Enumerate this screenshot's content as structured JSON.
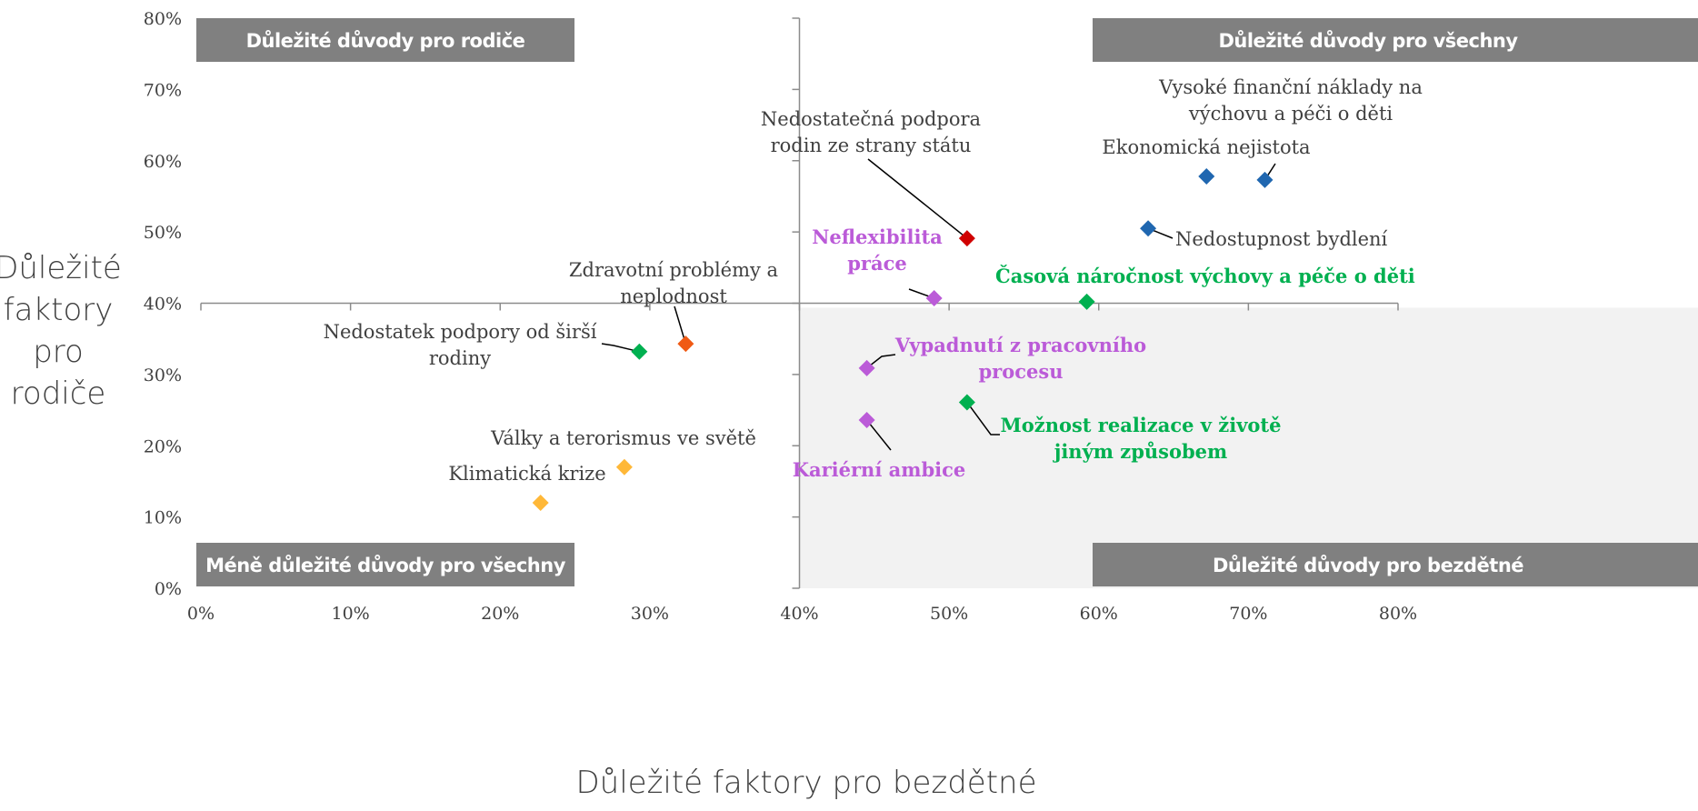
{
  "chart_data": {
    "type": "scatter",
    "xlabel": "Důležité faktory pro bezdětné",
    "ylabel": [
      "Důležité",
      "faktory",
      "pro",
      "rodiče"
    ],
    "xlim": [
      0,
      80
    ],
    "ylim": [
      0,
      80
    ],
    "xticks": [
      {
        "value": 0,
        "label": "0%"
      },
      {
        "value": 10,
        "label": "10%"
      },
      {
        "value": 20,
        "label": "20%"
      },
      {
        "value": 30,
        "label": "30%"
      },
      {
        "value": 40,
        "label": "40%"
      },
      {
        "value": 50,
        "label": "50%"
      },
      {
        "value": 60,
        "label": "60%"
      },
      {
        "value": 70,
        "label": "70%"
      },
      {
        "value": 80,
        "label": "80%"
      }
    ],
    "yticks": [
      {
        "value": 0,
        "label": "0%"
      },
      {
        "value": 10,
        "label": "10%"
      },
      {
        "value": 20,
        "label": "20%"
      },
      {
        "value": 30,
        "label": "30%"
      },
      {
        "value": 40,
        "label": "40%"
      },
      {
        "value": 50,
        "label": "50%"
      },
      {
        "value": 60,
        "label": "60%"
      },
      {
        "value": 70,
        "label": "70%"
      },
      {
        "value": 80,
        "label": "80%"
      }
    ],
    "axis_cross": [
      40,
      40
    ],
    "quadrants": [
      "Důležité důvody pro rodiče",
      "Důležité důvody pro všechny",
      "Méně důležité důvody pro všechny",
      "Důležité důvody pro bezdětné"
    ],
    "points": [
      {
        "label": [
          "Vysoké finanční náklady na",
          "výchovu a péči o děti"
        ],
        "x": 71.1,
        "y": 57.3,
        "color": "#2067b0"
      },
      {
        "label": [
          "Ekonomická nejistota"
        ],
        "x": 67.2,
        "y": 57.8,
        "color": "#2067b0"
      },
      {
        "label": [
          "Nedostupnost bydlení"
        ],
        "x": 63.3,
        "y": 50.5,
        "color": "#2067b0"
      },
      {
        "label": [
          "Nedostatečná podpora",
          "rodin ze strany státu"
        ],
        "x": 51.2,
        "y": 49.1,
        "color": "#d00000"
      },
      {
        "label": [
          "Neflexibilita",
          "práce"
        ],
        "x": 49.0,
        "y": 40.7,
        "color": "#bb5bd8"
      },
      {
        "label": [
          "Časová náročnost výchovy a péče o děti"
        ],
        "x": 59.2,
        "y": 40.2,
        "color": "#00b050"
      },
      {
        "label": [
          "Vypadnutí z pracovního",
          "procesu"
        ],
        "x": 44.5,
        "y": 30.9,
        "color": "#bb5bd8"
      },
      {
        "label": [
          "Možnost realizace v životě",
          "jiným způsobem"
        ],
        "x": 51.2,
        "y": 26.1,
        "color": "#00b050"
      },
      {
        "label": [
          "Kariérní ambice"
        ],
        "x": 44.5,
        "y": 23.6,
        "color": "#bb5bd8"
      },
      {
        "label": [
          "Zdravotní problémy a",
          "neplodnost"
        ],
        "x": 32.4,
        "y": 34.3,
        "color": "#f05a14"
      },
      {
        "label": [
          "Nedostatek podpory od širší",
          "rodiny"
        ],
        "x": 29.3,
        "y": 33.2,
        "color": "#00b050"
      },
      {
        "label": [
          "Války a terorismus ve světě"
        ],
        "x": 28.3,
        "y": 17.0,
        "color": "#ffb838"
      },
      {
        "label": [
          "Klimatická krize"
        ],
        "x": 22.7,
        "y": 12.0,
        "color": "#ffb838"
      }
    ]
  }
}
